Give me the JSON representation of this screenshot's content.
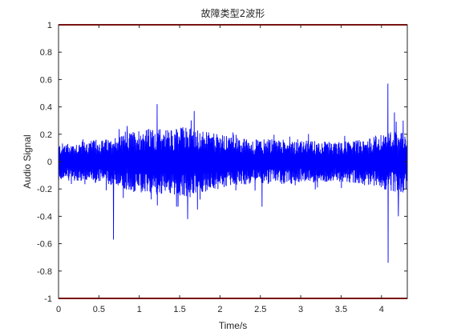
{
  "chart_data": {
    "type": "line",
    "title": "故障类型2波形",
    "xlabel": "Time/s",
    "ylabel": "Audio Signal",
    "xlim": [
      0,
      4.32
    ],
    "ylim": [
      -1,
      1
    ],
    "xticks": [
      "0",
      "0.5",
      "1",
      "1.5",
      "2",
      "2.5",
      "3",
      "3.5",
      "4"
    ],
    "xtick_values": [
      0,
      0.5,
      1,
      1.5,
      2,
      2.5,
      3,
      3.5,
      4
    ],
    "yticks": [
      "-1",
      "-0.8",
      "-0.6",
      "-0.4",
      "-0.2",
      "0",
      "0.2",
      "0.4",
      "0.6",
      "0.8",
      "1"
    ],
    "ytick_values": [
      -1,
      -0.8,
      -0.6,
      -0.4,
      -0.2,
      0,
      0.2,
      0.4,
      0.6,
      0.8,
      1
    ],
    "grid": false,
    "series": [
      {
        "color": "#0000ff",
        "envelope": {
          "t": [
            0,
            0.2,
            0.4,
            0.6,
            0.8,
            1.0,
            1.2,
            1.4,
            1.6,
            1.8,
            2.0,
            2.2,
            2.4,
            2.6,
            2.8,
            3.0,
            3.2,
            3.4,
            3.6,
            3.8,
            4.0,
            4.2,
            4.32
          ],
          "amp": [
            0.12,
            0.13,
            0.14,
            0.15,
            0.18,
            0.22,
            0.22,
            0.22,
            0.24,
            0.2,
            0.18,
            0.16,
            0.15,
            0.15,
            0.15,
            0.14,
            0.14,
            0.13,
            0.14,
            0.15,
            0.18,
            0.22,
            0.2
          ]
        },
        "spikes": [
          {
            "t": 0.68,
            "y": -0.57
          },
          {
            "t": 0.85,
            "y": 0.26
          },
          {
            "t": 1.22,
            "y": 0.42
          },
          {
            "t": 1.48,
            "y": -0.33
          },
          {
            "t": 1.6,
            "y": -0.42
          },
          {
            "t": 1.68,
            "y": 0.37
          },
          {
            "t": 1.72,
            "y": -0.35
          },
          {
            "t": 2.52,
            "y": -0.33
          },
          {
            "t": 4.08,
            "y": 0.57
          },
          {
            "t": 4.08,
            "y": -0.74
          },
          {
            "t": 4.16,
            "y": 0.36
          },
          {
            "t": 4.21,
            "y": -0.4
          },
          {
            "t": 4.27,
            "y": 0.3
          }
        ]
      }
    ],
    "reference_lines": [
      {
        "y": 1,
        "color": "#cc0000"
      },
      {
        "y": -1,
        "color": "#cc0000"
      }
    ]
  }
}
